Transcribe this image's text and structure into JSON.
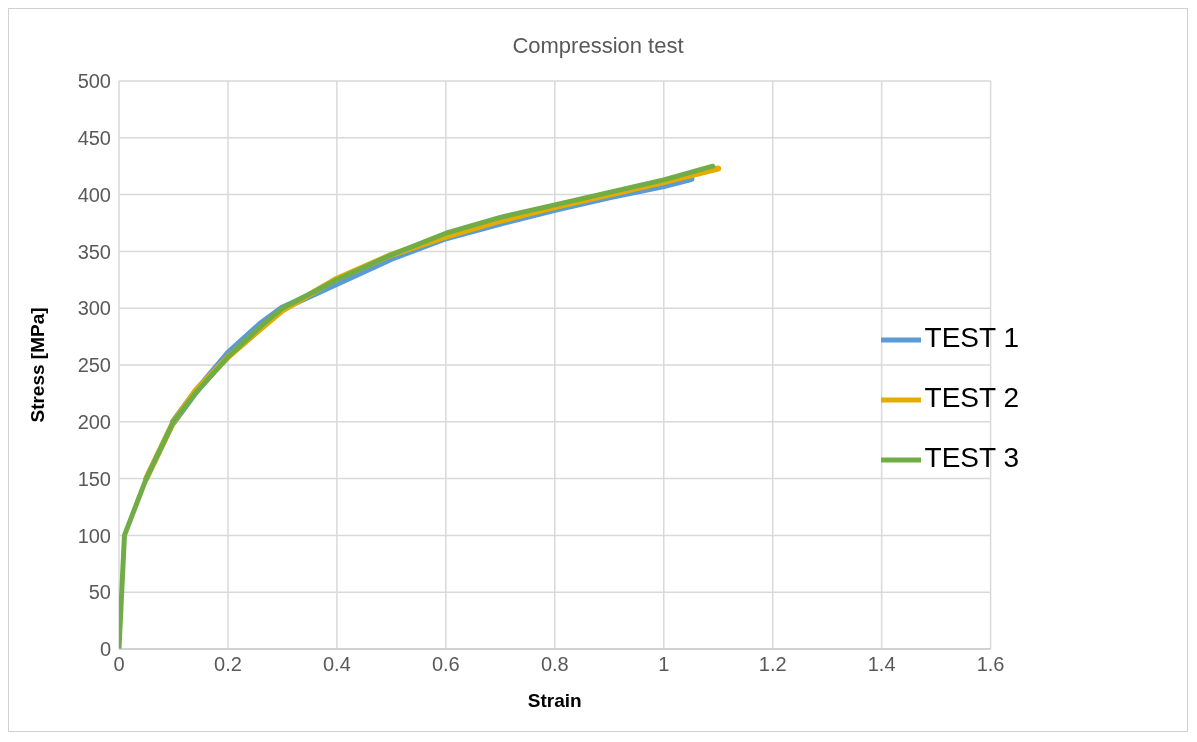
{
  "chart_data": {
    "type": "line",
    "title": "Compression test",
    "xlabel": "Strain",
    "ylabel": "Stress [MPa]",
    "xlim": [
      0,
      1.6
    ],
    "xticks": [
      0,
      0.2,
      0.4,
      0.6,
      0.8,
      1,
      1.2,
      1.4,
      1.6
    ],
    "ylim": [
      0,
      500
    ],
    "yticks": [
      0,
      50,
      100,
      150,
      200,
      250,
      300,
      350,
      400,
      450,
      500
    ],
    "grid": true,
    "legend": "right",
    "marker": "none",
    "line_style": "solid",
    "series": [
      {
        "name": "TEST 1",
        "color": "#5b9bd5",
        "x": [
          0.1,
          0.14,
          0.2,
          0.26,
          0.3,
          0.4,
          0.5,
          0.6,
          0.7,
          0.8,
          0.9,
          1.0,
          1.05
        ],
        "values": [
          200,
          226,
          260,
          286,
          300,
          322,
          344,
          362,
          375,
          387,
          398,
          408,
          414
        ]
      },
      {
        "name": "TEST 2",
        "color": "#e5ac00",
        "x": [
          0.05,
          0.1,
          0.14,
          0.2,
          0.26,
          0.3,
          0.4,
          0.5,
          0.6,
          0.7,
          0.8,
          0.9,
          1.0,
          1.1
        ],
        "values": [
          150,
          200,
          227,
          257,
          282,
          298,
          326,
          347,
          363,
          377,
          389,
          400,
          411,
          423
        ]
      },
      {
        "name": "TEST 3",
        "color": "#70ad47",
        "x": [
          0,
          0.01,
          0.05,
          0.1,
          0.14,
          0.2,
          0.26,
          0.3,
          0.4,
          0.5,
          0.6,
          0.7,
          0.8,
          0.9,
          1.0,
          1.09
        ],
        "values": [
          0,
          100,
          150,
          200,
          225,
          257,
          284,
          300,
          325,
          347,
          366,
          380,
          391,
          402,
          413,
          425
        ]
      }
    ]
  }
}
